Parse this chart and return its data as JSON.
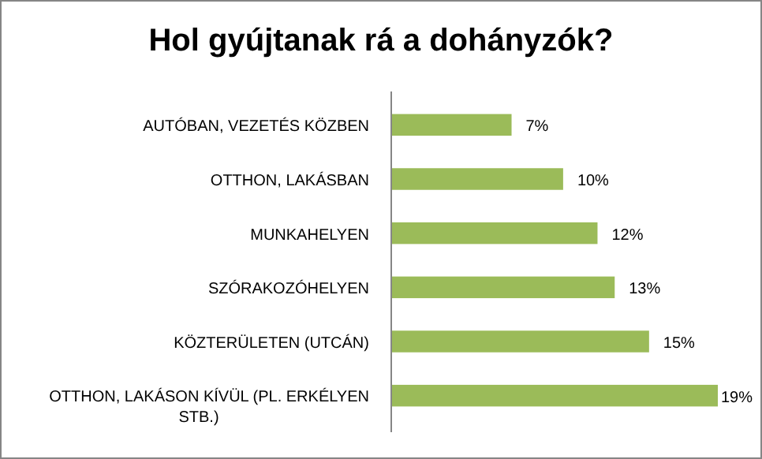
{
  "chart_data": {
    "type": "bar",
    "orientation": "horizontal",
    "title": "Hol gyújtanak rá a dohányzók?",
    "categories": [
      "AUTÓBAN, VEZETÉS  KÖZBEN",
      "OTTHON, LAKÁSBAN",
      "MUNKAHELYEN",
      "SZÓRAKOZÓHELYEN",
      "KÖZTERÜLETEN  (UTCÁN)",
      "OTTHON, LAKÁSON KÍVÜL (PL. ERKÉLYEN STB.)"
    ],
    "values": [
      7,
      10,
      12,
      13,
      15,
      19
    ],
    "value_labels": [
      "7%",
      "10%",
      "12%",
      "13%",
      "15%",
      "19%"
    ],
    "color": "#9bbb59",
    "xlim": [
      0,
      19
    ]
  }
}
